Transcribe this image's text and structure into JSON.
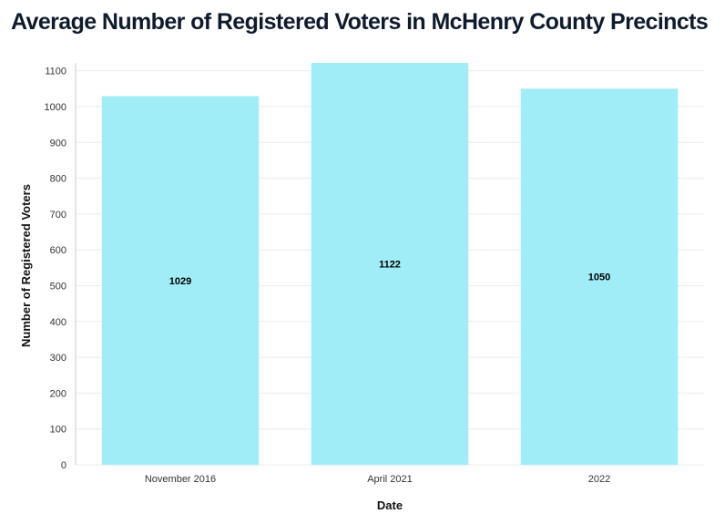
{
  "chart_data": {
    "type": "bar",
    "title": "Average Number of Registered Voters in McHenry County Precincts",
    "xlabel": "Date",
    "ylabel": "Number of Registered Voters",
    "categories": [
      "November 2016",
      "April 2021",
      "2022"
    ],
    "values": [
      1029,
      1122,
      1050
    ],
    "data_labels": [
      "1029",
      "1122",
      "1050"
    ],
    "ylim": [
      0,
      1122
    ],
    "y_ticks": [
      0,
      100,
      200,
      300,
      400,
      500,
      600,
      700,
      800,
      900,
      1000,
      1100
    ],
    "grid": true,
    "legend": "none",
    "bar_color": "#a0edf7"
  }
}
